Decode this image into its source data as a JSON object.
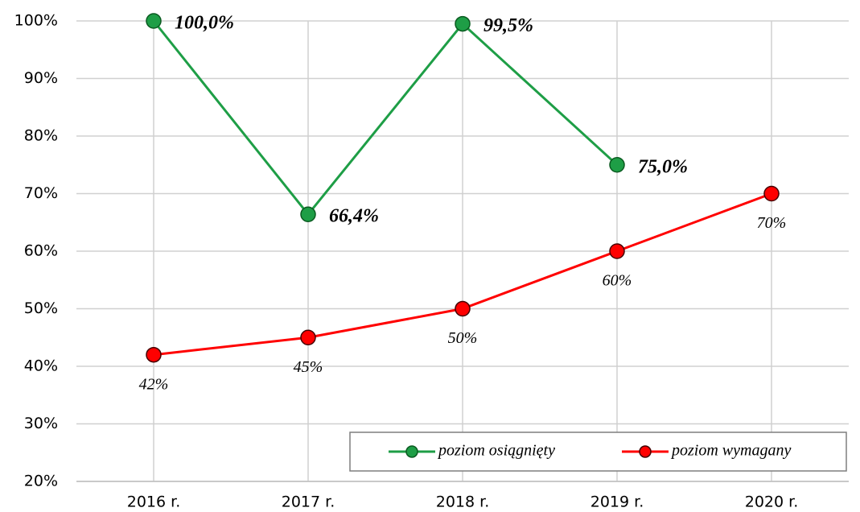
{
  "chart_data": {
    "type": "line",
    "categories": [
      "2016 r.",
      "2017 r.",
      "2018 r.",
      "2019 r.",
      "2020 r."
    ],
    "series": [
      {
        "name": "poziom osiągnięty",
        "color": "#1e9e46",
        "values": [
          100,
          66.4,
          99.5,
          75,
          null
        ],
        "value_labels": [
          "100,0%",
          "66,4%",
          "99,5%",
          "75,0%",
          null
        ]
      },
      {
        "name": "poziom wymagany",
        "color": "#ff0000",
        "values": [
          42,
          45,
          50,
          60,
          70
        ],
        "value_labels": [
          "42%",
          "45%",
          "50%",
          "60%",
          "70%"
        ]
      }
    ],
    "ylim": [
      20,
      100
    ],
    "yticks": [
      {
        "value": 20,
        "label": "20%"
      },
      {
        "value": 30,
        "label": "30%"
      },
      {
        "value": 40,
        "label": "40%"
      },
      {
        "value": 50,
        "label": "50%"
      },
      {
        "value": 60,
        "label": "60%"
      },
      {
        "value": 70,
        "label": "70%"
      },
      {
        "value": 80,
        "label": "80%"
      },
      {
        "value": 90,
        "label": "90%"
      },
      {
        "value": 100,
        "label": "100%"
      }
    ],
    "grid": true,
    "legend": "bottom-right"
  }
}
